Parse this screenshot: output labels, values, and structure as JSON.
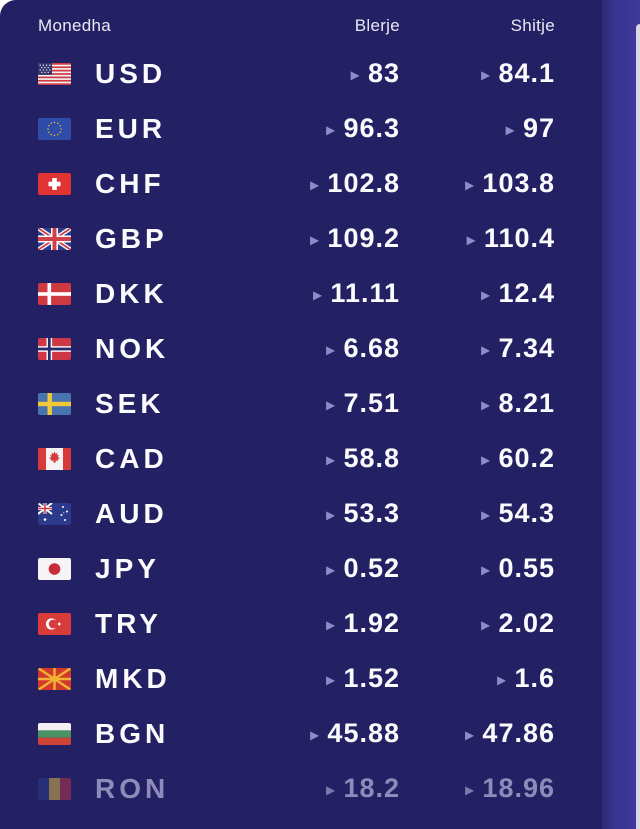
{
  "widget": {
    "columns": {
      "currency": "Monedha",
      "buy": "Blerje",
      "sell": "Shitje"
    },
    "arrow_glyph": "▸",
    "rows": [
      {
        "code": "USD",
        "flag": "us",
        "buy": "83",
        "sell": "84.1",
        "dimmed": false
      },
      {
        "code": "EUR",
        "flag": "eu",
        "buy": "96.3",
        "sell": "97",
        "dimmed": false
      },
      {
        "code": "CHF",
        "flag": "ch",
        "buy": "102.8",
        "sell": "103.8",
        "dimmed": false
      },
      {
        "code": "GBP",
        "flag": "gb",
        "buy": "109.2",
        "sell": "110.4",
        "dimmed": false
      },
      {
        "code": "DKK",
        "flag": "dk",
        "buy": "11.11",
        "sell": "12.4",
        "dimmed": false
      },
      {
        "code": "NOK",
        "flag": "no",
        "buy": "6.68",
        "sell": "7.34",
        "dimmed": false
      },
      {
        "code": "SEK",
        "flag": "se",
        "buy": "7.51",
        "sell": "8.21",
        "dimmed": false
      },
      {
        "code": "CAD",
        "flag": "ca",
        "buy": "58.8",
        "sell": "60.2",
        "dimmed": false
      },
      {
        "code": "AUD",
        "flag": "au",
        "buy": "53.3",
        "sell": "54.3",
        "dimmed": false
      },
      {
        "code": "JPY",
        "flag": "jp",
        "buy": "0.52",
        "sell": "0.55",
        "dimmed": false
      },
      {
        "code": "TRY",
        "flag": "tr",
        "buy": "1.92",
        "sell": "2.02",
        "dimmed": false
      },
      {
        "code": "MKD",
        "flag": "mk",
        "buy": "1.52",
        "sell": "1.6",
        "dimmed": false
      },
      {
        "code": "BGN",
        "flag": "bg",
        "buy": "45.88",
        "sell": "47.86",
        "dimmed": false
      },
      {
        "code": "RON",
        "flag": "ro",
        "buy": "18.2",
        "sell": "18.96",
        "dimmed": true
      }
    ],
    "colors": {
      "card_bg": "#242064",
      "page_strip": "#3e3a9c",
      "accent_arrow": "#8f8bcb",
      "text": "#fbfafd",
      "dimmed_text": "#8e8bba"
    }
  }
}
